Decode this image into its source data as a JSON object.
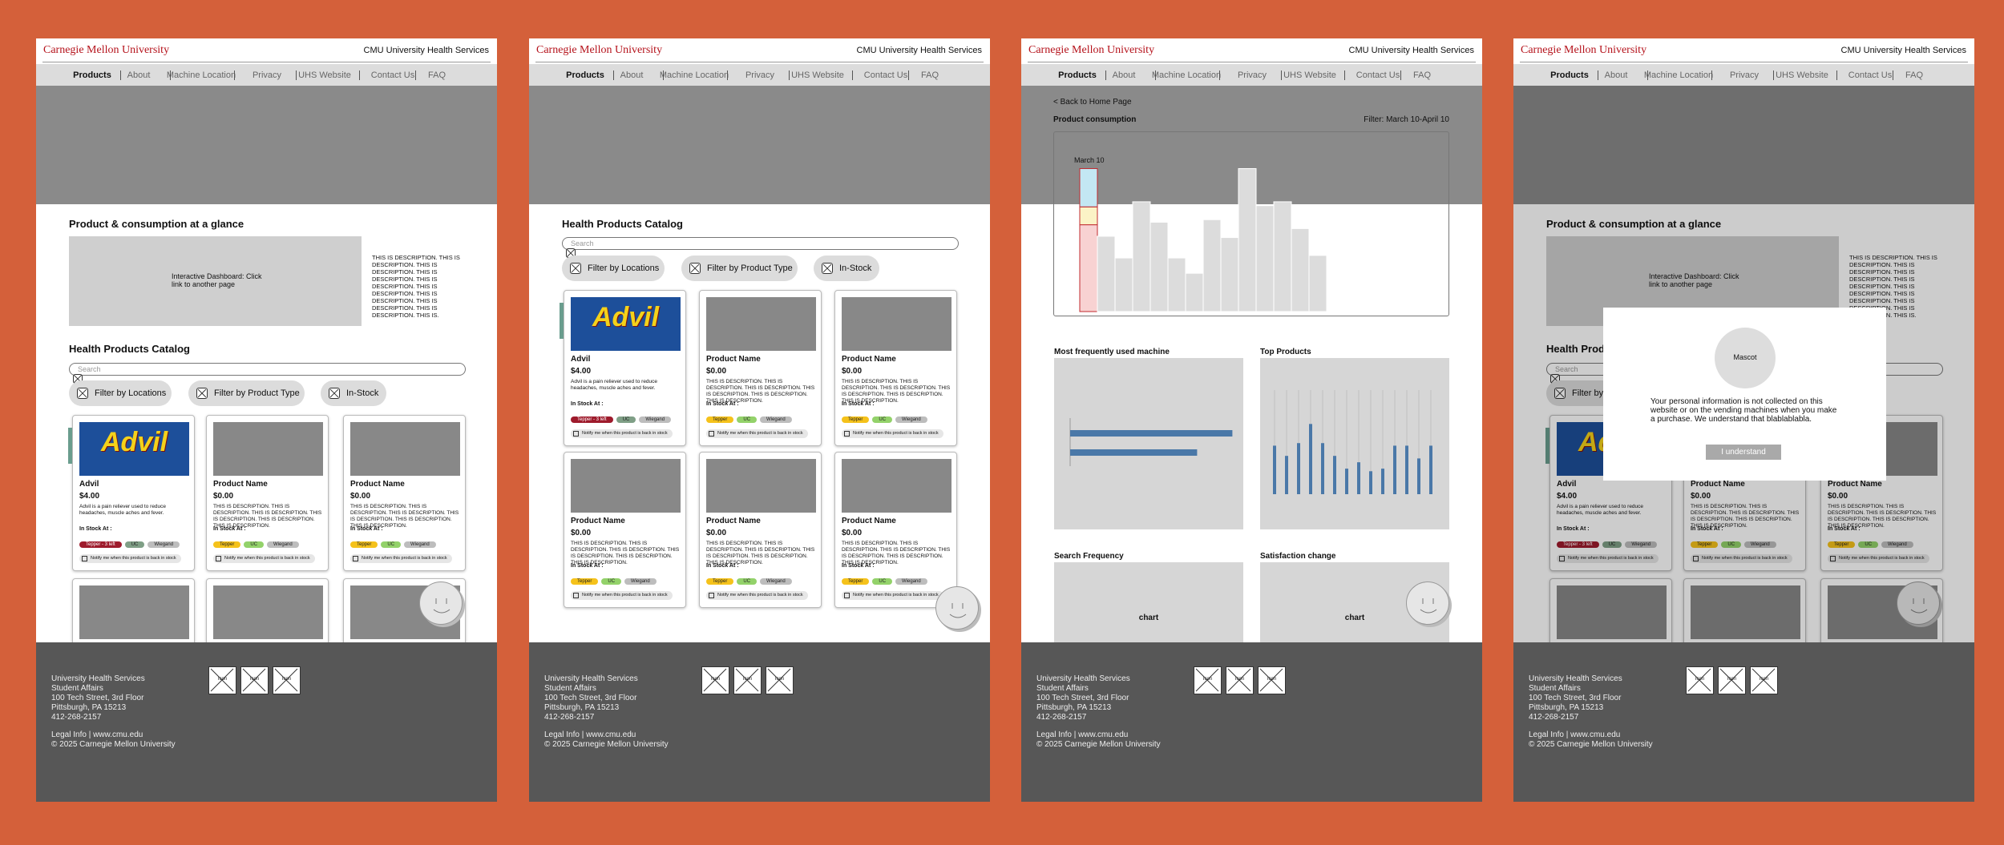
{
  "header": {
    "logo": "Carnegie Mellon University",
    "service": "CMU University Health Services"
  },
  "nav": [
    "Products",
    "About",
    "Machine Location",
    "Privacy",
    "UHS Website",
    "Contact Us",
    "FAQ"
  ],
  "footer": {
    "address": [
      "University Health Services",
      "Student Affairs",
      "100 Tech Street, 3rd Floor",
      "Pittsburgh, PA 15213",
      "412-268-2157"
    ],
    "links": "Legal Info | www.cmu.edu",
    "copyright": "© 2025 Carnegie Mellon University",
    "icons": [
      "Icon",
      "Icon",
      "Icon"
    ]
  },
  "home": {
    "glance_title": "Product & consumption at a glance",
    "dashboard": "Interactive Dashboard: Click link to another page",
    "description": "THIS IS DESCRIPTION. THIS IS DESCRIPTION. THIS IS DESCRIPTION. THIS IS DESCRIPTION. THIS IS DESCRIPTION. THIS IS DESCRIPTION. THIS IS DESCRIPTION. THIS IS DESCRIPTION. THIS IS DESCRIPTION. THIS IS."
  },
  "catalog": {
    "title": "Health Products Catalog",
    "search": "Search",
    "filters": [
      "Filter by Locations",
      "Filter by Product Type",
      "In-Stock"
    ],
    "stock_label": "In Stock At :",
    "notify": "Notify me when this product is back in stock",
    "products": [
      {
        "name": "Advil",
        "image_text": "Advil",
        "price": "$4.00",
        "desc": "Advil is a pain reliever used to reduce headaches, muscle aches and fever.",
        "locations": [
          {
            "text": "Tepper - 3 left",
            "color": "#9e1b2c"
          },
          {
            "text": "UC",
            "color": "#7f9f86"
          },
          {
            "text": "Wiegand",
            "color": "#bdbdbd"
          }
        ]
      },
      {
        "name": "Product Name",
        "price": "$0.00",
        "desc": "THIS IS DESCRIPTION. THIS IS DESCRIPTION. THIS IS DESCRIPTION. THIS IS DESCRIPTION. THIS IS DESCRIPTION. THIS IS DESCRIPTION.",
        "locations": [
          {
            "text": "Tepper",
            "color": "#f5c21b"
          },
          {
            "text": "UC",
            "color": "#93d26a"
          },
          {
            "text": "Wiegand",
            "color": "#bdbdbd"
          }
        ]
      },
      {
        "name": "Product Name",
        "price": "$0.00",
        "desc": "THIS IS DESCRIPTION. THIS IS DESCRIPTION. THIS IS DESCRIPTION. THIS IS DESCRIPTION. THIS IS DESCRIPTION. THIS IS DESCRIPTION.",
        "locations": [
          {
            "text": "Tepper",
            "color": "#f5c21b"
          },
          {
            "text": "UC",
            "color": "#93d26a"
          },
          {
            "text": "Wiegand",
            "color": "#bdbdbd"
          }
        ]
      },
      {
        "name": "Product Name",
        "price": "$0.00",
        "desc": "THIS IS DESCRIPTION. THIS IS DESCRIPTION. THIS IS DESCRIPTION. THIS IS DESCRIPTION. THIS IS DESCRIPTION. THIS IS DESCRIPTION.",
        "locations": [
          {
            "text": "Tepper",
            "color": "#f5c21b"
          },
          {
            "text": "UC",
            "color": "#93d26a"
          },
          {
            "text": "Wiegand",
            "color": "#bdbdbd"
          }
        ]
      },
      {
        "name": "Product Name",
        "price": "$0.00",
        "desc": "THIS IS DESCRIPTION. THIS IS DESCRIPTION. THIS IS DESCRIPTION. THIS IS DESCRIPTION. THIS IS DESCRIPTION. THIS IS DESCRIPTION.",
        "locations": [
          {
            "text": "Tepper",
            "color": "#f5c21b"
          },
          {
            "text": "UC",
            "color": "#93d26a"
          },
          {
            "text": "Wiegand",
            "color": "#bdbdbd"
          }
        ]
      },
      {
        "name": "Product Name",
        "price": "$0.00",
        "desc": "THIS IS DESCRIPTION. THIS IS DESCRIPTION. THIS IS DESCRIPTION. THIS IS DESCRIPTION. THIS IS DESCRIPTION. THIS IS DESCRIPTION.",
        "locations": [
          {
            "text": "Tepper",
            "color": "#f5c21b"
          },
          {
            "text": "UC",
            "color": "#93d26a"
          },
          {
            "text": "Wiegand",
            "color": "#bdbdbd"
          }
        ]
      }
    ]
  },
  "dashboard": {
    "back": "< Back to Home Page",
    "title": "Product consumption",
    "filter": "Filter: March 10-April 10",
    "annotation": "March 10",
    "consumption": [
      [
        68,
        14,
        30
      ],
      [
        59
      ],
      [
        42
      ],
      [
        86
      ],
      [
        70
      ],
      [
        42
      ],
      [
        30
      ],
      [
        72
      ],
      [
        58
      ],
      [
        112
      ],
      [
        83
      ],
      [
        86
      ],
      [
        65
      ],
      [
        44
      ]
    ],
    "segment_colors": [
      "#f8d2d2",
      "#fbf3c6",
      "#c3e7f3"
    ],
    "sections": [
      "Most frequently used machine",
      "Top Products",
      "Search Frequency",
      "Satisfaction change"
    ],
    "machine_usage": [
      92,
      72
    ],
    "top_products": [
      38,
      30,
      40,
      55,
      40,
      30,
      20,
      25,
      18,
      20,
      38,
      38,
      28,
      38
    ],
    "bar_color": "#4a78a8",
    "chart_label": "chart"
  },
  "modal": {
    "mascot": "Mascot",
    "text": "Your personal information is not collected on this website or on the vending machines when you make a purchase. We understand that blablablabla.",
    "button": "I understand"
  }
}
